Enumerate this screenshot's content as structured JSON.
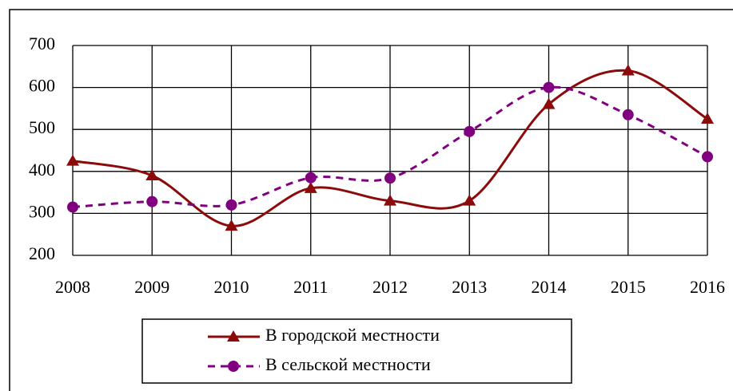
{
  "chart_data": {
    "type": "line",
    "categories": [
      "2008",
      "2009",
      "2010",
      "2011",
      "2012",
      "2013",
      "2014",
      "2015",
      "2016"
    ],
    "series": [
      {
        "name": "В городской местности",
        "color": "#8b0a0a",
        "marker": "triangle",
        "dash": false,
        "values": [
          425,
          390,
          270,
          360,
          330,
          330,
          560,
          640,
          525
        ]
      },
      {
        "name": "В сельской местности",
        "color": "#800080",
        "marker": "circle",
        "dash": true,
        "values": [
          315,
          328,
          320,
          385,
          384,
          495,
          600,
          535,
          435
        ]
      }
    ],
    "ylim": [
      200,
      700
    ],
    "yticks": [
      200,
      300,
      400,
      500,
      600,
      700
    ],
    "grid": true
  }
}
